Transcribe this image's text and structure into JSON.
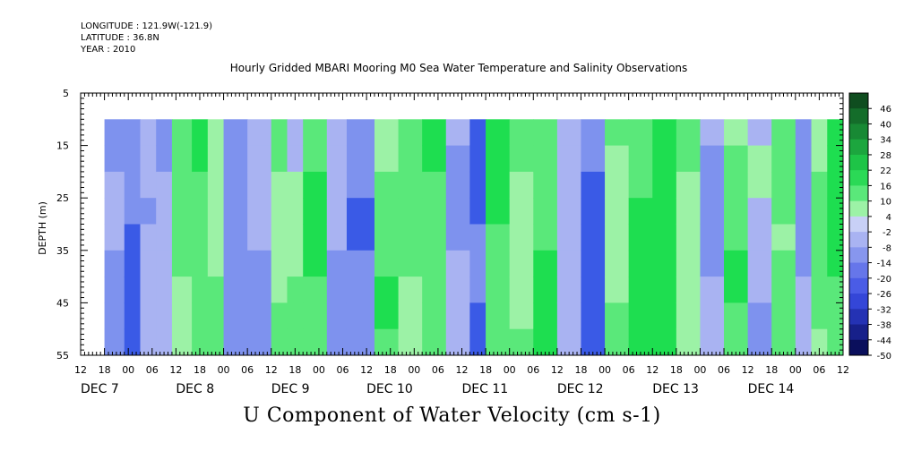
{
  "header": {
    "longitude": "LONGITUDE : 121.9W(-121.9)",
    "latitude": "LATITUDE : 36.8N",
    "year": "YEAR : 2010"
  },
  "chart_data": {
    "type": "heatmap",
    "title": "Hourly Gridded MBARI Mooring M0 Sea Water Temperature and Salinity Observations",
    "bottom_title": "U Component of Water Velocity (cm s-1)",
    "ylabel": "DEPTH (m)",
    "ylim": [
      55,
      5
    ],
    "y_ticks": [
      5,
      15,
      25,
      35,
      45,
      55
    ],
    "x_range_hours": [
      -12,
      180
    ],
    "x_hour_tick_labels": [
      "12",
      "18",
      "00",
      "06",
      "12",
      "18",
      "00",
      "06",
      "12",
      "18",
      "00",
      "06",
      "12",
      "18",
      "00",
      "06",
      "12",
      "18",
      "00",
      "06",
      "12",
      "18",
      "00",
      "06",
      "12",
      "18",
      "00",
      "06",
      "12",
      "18",
      "00",
      "06",
      "12"
    ],
    "x_day_labels": [
      "DEC 7",
      "DEC 8",
      "DEC 9",
      "DEC 10",
      "DEC 11",
      "DEC 12",
      "DEC 13",
      "DEC 14"
    ],
    "data_x_range_hours": [
      -6,
      180
    ],
    "data_depth_range": [
      10,
      55
    ],
    "colorbar_levels": [
      "46",
      "40",
      "34",
      "28",
      "22",
      "16",
      "10",
      "4",
      "-2",
      "-8",
      "-14",
      "-20",
      "-26",
      "-32",
      "-38",
      "-44",
      "-50"
    ],
    "colorbar_range": [
      -50,
      52
    ],
    "colors": {
      "strong_negative": "#3a5ae6",
      "negative": "#7e92ee",
      "weak_negative": "#a9b3f2",
      "weak_positive": "#9cf2a6",
      "positive": "#5ae87a",
      "strong_positive": "#1ede50"
    },
    "column_pattern_hours": [
      {
        "start": -6,
        "end": -1,
        "u": -12
      },
      {
        "start": -1,
        "end": 3,
        "u": -18
      },
      {
        "start": 3,
        "end": 7,
        "u": -4
      },
      {
        "start": 7,
        "end": 11,
        "u": -8
      },
      {
        "start": 11,
        "end": 16,
        "u": 6
      },
      {
        "start": 16,
        "end": 20,
        "u": 14
      },
      {
        "start": 20,
        "end": 24,
        "u": 6
      },
      {
        "start": 24,
        "end": 30,
        "u": -16
      },
      {
        "start": 30,
        "end": 36,
        "u": -8
      },
      {
        "start": 36,
        "end": 40,
        "u": 8
      },
      {
        "start": 40,
        "end": 44,
        "u": 4
      },
      {
        "start": 44,
        "end": 50,
        "u": 12
      },
      {
        "start": 50,
        "end": 55,
        "u": -6
      },
      {
        "start": 55,
        "end": 62,
        "u": -14
      },
      {
        "start": 62,
        "end": 68,
        "u": 10
      },
      {
        "start": 68,
        "end": 74,
        "u": 6
      },
      {
        "start": 74,
        "end": 80,
        "u": 14
      },
      {
        "start": 80,
        "end": 86,
        "u": -6
      },
      {
        "start": 86,
        "end": 90,
        "u": -22
      },
      {
        "start": 90,
        "end": 96,
        "u": 12
      },
      {
        "start": 96,
        "end": 102,
        "u": 8
      },
      {
        "start": 102,
        "end": 108,
        "u": 16
      },
      {
        "start": 108,
        "end": 114,
        "u": -4
      },
      {
        "start": 114,
        "end": 120,
        "u": -24
      },
      {
        "start": 120,
        "end": 126,
        "u": 8
      },
      {
        "start": 126,
        "end": 132,
        "u": 16
      },
      {
        "start": 132,
        "end": 138,
        "u": 22
      },
      {
        "start": 138,
        "end": 144,
        "u": 6
      },
      {
        "start": 144,
        "end": 150,
        "u": -6
      },
      {
        "start": 150,
        "end": 156,
        "u": 10
      },
      {
        "start": 156,
        "end": 162,
        "u": -4
      },
      {
        "start": 162,
        "end": 168,
        "u": 12
      },
      {
        "start": 168,
        "end": 172,
        "u": -10
      },
      {
        "start": 172,
        "end": 176,
        "u": 6
      },
      {
        "start": 176,
        "end": 180,
        "u": 18
      }
    ]
  }
}
